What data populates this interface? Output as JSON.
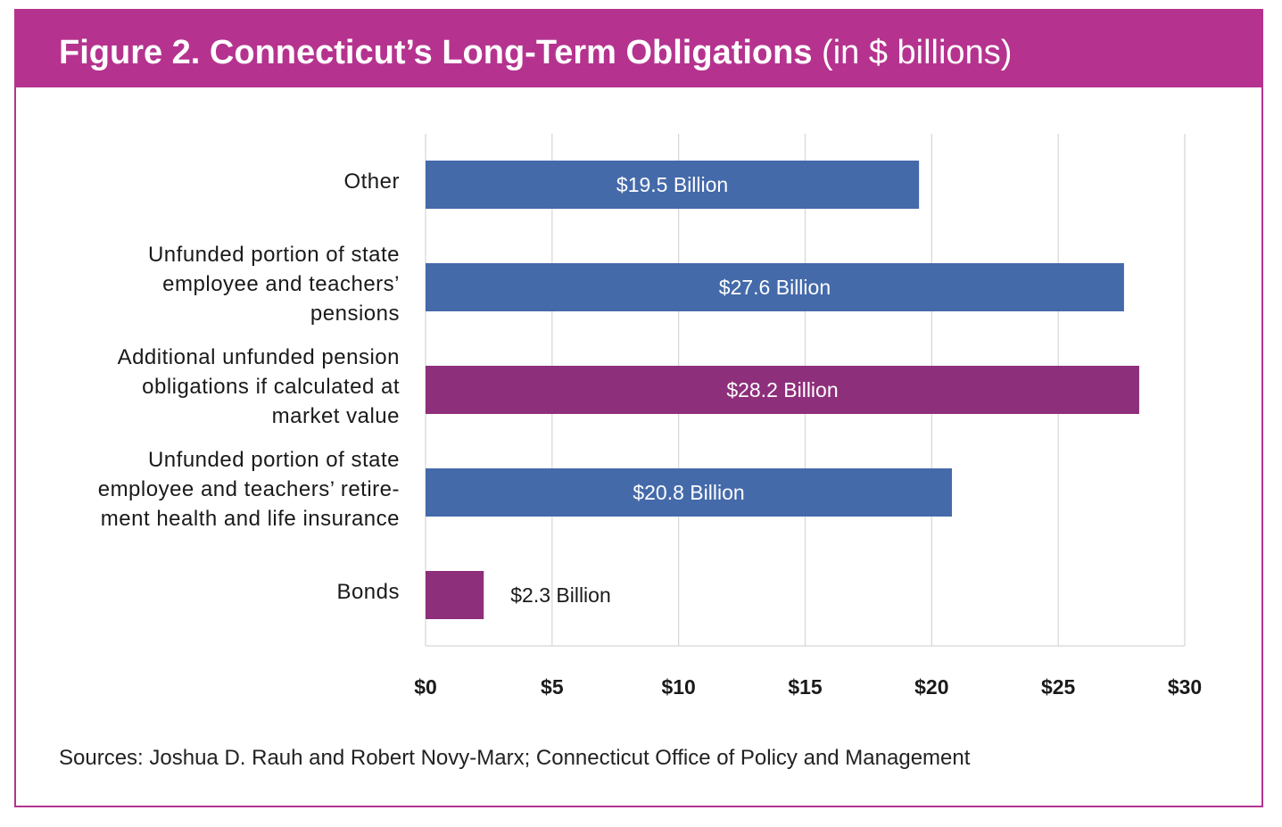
{
  "header": {
    "title_bold": "Figure 2. Connecticut’s Long-Term Obligations",
    "title_light": "(in $ billions)"
  },
  "colors": {
    "brand": "#b5338f",
    "series_blue": "#456aaa",
    "series_purple": "#8e2f7b",
    "grid": "#d6d6d6"
  },
  "chart_data": {
    "type": "bar",
    "orientation": "horizontal",
    "title": "Figure 2. Connecticut’s Long-Term Obligations (in $ billions)",
    "xlabel": "",
    "ylabel": "",
    "xlim": [
      0,
      30
    ],
    "x_ticks": [
      0,
      5,
      10,
      15,
      20,
      25,
      30
    ],
    "x_tick_labels": [
      "$0",
      "$5",
      "$10",
      "$15",
      "$20",
      "$25",
      "$30"
    ],
    "grid": true,
    "legend": "none",
    "categories": [
      [
        "Other"
      ],
      [
        "Unfunded portion of state",
        "employee and teachers’",
        "pensions"
      ],
      [
        "Additional unfunded pension",
        "obligations if calculated at",
        "market value"
      ],
      [
        "Unfunded portion of state",
        "employee and teachers’ retire-",
        "ment health and life insurance"
      ],
      [
        "Bonds"
      ]
    ],
    "values": [
      19.5,
      27.6,
      28.2,
      20.8,
      2.3
    ],
    "data_labels": [
      "$19.5 Billion",
      "$27.6 Billion",
      "$28.2 Billion",
      "$20.8 Billion",
      "$2.3 Billion"
    ],
    "bar_colors": [
      "#456aaa",
      "#456aaa",
      "#8e2f7b",
      "#456aaa",
      "#8e2f7b"
    ],
    "label_inside": [
      true,
      true,
      true,
      true,
      false
    ]
  },
  "footer": {
    "source": "Sources: Joshua D. Rauh and Robert Novy-Marx; Connecticut Office of Policy and Management"
  }
}
